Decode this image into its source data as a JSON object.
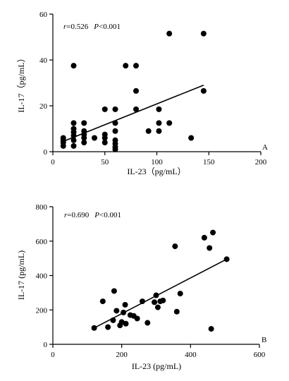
{
  "chart_data": [
    {
      "type": "scatter",
      "panel_label": "A",
      "xlabel": "IL-23（pg/mL）",
      "ylabel": "IL-17（pg/mL）",
      "xlim": [
        0,
        200
      ],
      "ylim": [
        0,
        60
      ],
      "xticks": [
        0,
        50,
        100,
        150,
        200
      ],
      "yticks": [
        0,
        20,
        40,
        60
      ],
      "stat_r_label": "r",
      "stat_r_value": "=0.526",
      "stat_p_label": "P",
      "stat_p_value": "<0.001",
      "regression": {
        "x": [
          10,
          145
        ],
        "y": [
          4.5,
          29
        ]
      },
      "points": [
        [
          10,
          2.5
        ],
        [
          10,
          4
        ],
        [
          10,
          5
        ],
        [
          10,
          6
        ],
        [
          20,
          2.5
        ],
        [
          20,
          5
        ],
        [
          20,
          7
        ],
        [
          20,
          8.5
        ],
        [
          20,
          10
        ],
        [
          20,
          12.5
        ],
        [
          20,
          37.5
        ],
        [
          30,
          4
        ],
        [
          30,
          6
        ],
        [
          30,
          7.5
        ],
        [
          30,
          9
        ],
        [
          30,
          12.5
        ],
        [
          40,
          6
        ],
        [
          50,
          4
        ],
        [
          50,
          6
        ],
        [
          50,
          7.5
        ],
        [
          50,
          18.5
        ],
        [
          60,
          1
        ],
        [
          60,
          2
        ],
        [
          60,
          3.5
        ],
        [
          60,
          5
        ],
        [
          60,
          9
        ],
        [
          60,
          12.5
        ],
        [
          60,
          18.5
        ],
        [
          70,
          37.5
        ],
        [
          80,
          18.5
        ],
        [
          80,
          26.5
        ],
        [
          80,
          37.5
        ],
        [
          92,
          9
        ],
        [
          102,
          9
        ],
        [
          102,
          12.5
        ],
        [
          102,
          18.5
        ],
        [
          112,
          12.5
        ],
        [
          112,
          51.5
        ],
        [
          133,
          6
        ],
        [
          145,
          26.5
        ],
        [
          145,
          51.5
        ]
      ]
    },
    {
      "type": "scatter",
      "panel_label": "B",
      "xlabel": "IL-23 (pg/mL)",
      "ylabel": "IL-17 (pg/mL)",
      "xlim": [
        0,
        600
      ],
      "ylim": [
        0,
        800
      ],
      "xticks": [
        0,
        200,
        400,
        600
      ],
      "yticks": [
        0,
        200,
        400,
        600,
        800
      ],
      "stat_r_label": "r",
      "stat_r_value": "=0.690",
      "stat_p_label": "P",
      "stat_p_value": "<0.001",
      "regression": {
        "x": [
          120,
          505
        ],
        "y": [
          95,
          495
        ]
      },
      "points": [
        [
          120,
          95
        ],
        [
          145,
          250
        ],
        [
          160,
          100
        ],
        [
          175,
          140
        ],
        [
          178,
          310
        ],
        [
          185,
          195
        ],
        [
          195,
          110
        ],
        [
          200,
          130
        ],
        [
          205,
          185
        ],
        [
          210,
          230
        ],
        [
          212,
          120
        ],
        [
          225,
          170
        ],
        [
          235,
          165
        ],
        [
          245,
          150
        ],
        [
          260,
          250
        ],
        [
          275,
          125
        ],
        [
          295,
          245
        ],
        [
          300,
          285
        ],
        [
          305,
          215
        ],
        [
          312,
          250
        ],
        [
          320,
          255
        ],
        [
          355,
          570
        ],
        [
          360,
          190
        ],
        [
          370,
          295
        ],
        [
          440,
          620
        ],
        [
          455,
          560
        ],
        [
          460,
          90
        ],
        [
          465,
          650
        ],
        [
          505,
          495
        ]
      ]
    }
  ]
}
